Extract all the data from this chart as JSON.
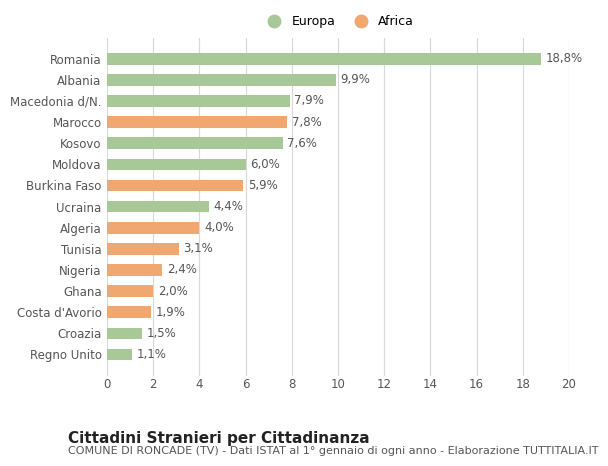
{
  "categories": [
    "Romania",
    "Albania",
    "Macedonia d/N.",
    "Marocco",
    "Kosovo",
    "Moldova",
    "Burkina Faso",
    "Ucraina",
    "Algeria",
    "Tunisia",
    "Nigeria",
    "Ghana",
    "Costa d'Avorio",
    "Croazia",
    "Regno Unito"
  ],
  "values": [
    18.8,
    9.9,
    7.9,
    7.8,
    7.6,
    6.0,
    5.9,
    4.4,
    4.0,
    3.1,
    2.4,
    2.0,
    1.9,
    1.5,
    1.1
  ],
  "continents": [
    "Europa",
    "Europa",
    "Europa",
    "Africa",
    "Europa",
    "Europa",
    "Africa",
    "Europa",
    "Africa",
    "Africa",
    "Africa",
    "Africa",
    "Africa",
    "Europa",
    "Europa"
  ],
  "color_europa": "#a8c898",
  "color_africa": "#f0a870",
  "label_europa": "Europa",
  "label_africa": "Africa",
  "xlim": [
    0,
    20
  ],
  "xticks": [
    0,
    2,
    4,
    6,
    8,
    10,
    12,
    14,
    16,
    18,
    20
  ],
  "title": "Cittadini Stranieri per Cittadinanza",
  "subtitle": "COMUNE DI RONCADE (TV) - Dati ISTAT al 1° gennaio di ogni anno - Elaborazione TUTTITALIA.IT",
  "bg_color": "#ffffff",
  "grid_color": "#d8d8d8",
  "bar_height": 0.55,
  "title_fontsize": 11,
  "subtitle_fontsize": 8,
  "label_fontsize": 8.5,
  "tick_fontsize": 8.5,
  "legend_fontsize": 9
}
